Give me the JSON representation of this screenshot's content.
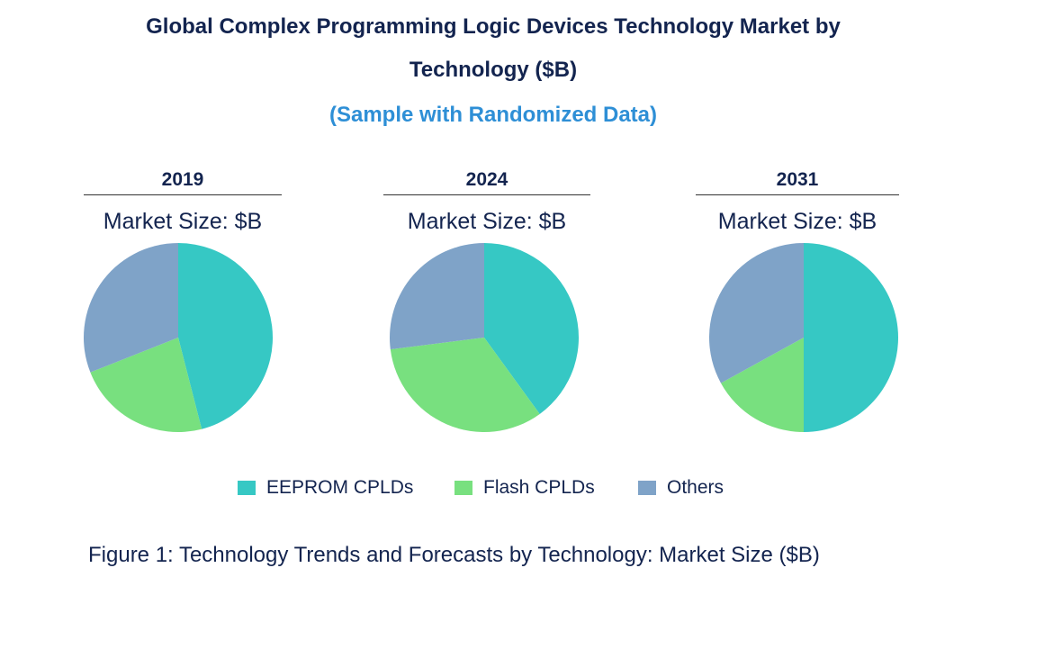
{
  "chart_data": {
    "type": "pie",
    "title": "Global Complex Programming Logic Devices Technology Market by Technology ($B)",
    "title_line1": "Global Complex Programming Logic Devices Technology Market by",
    "title_line2": "Technology ($B)",
    "subtitle": "(Sample with Randomized Data)",
    "categories": [
      "EEPROM CPLDs",
      "Flash CPLDs",
      "Others"
    ],
    "colors": [
      "#36c8c4",
      "#78e07f",
      "#7fa3c8"
    ],
    "legend_position": "bottom",
    "pies": [
      {
        "year": "2019",
        "label": "Market Size: $B",
        "values": [
          46,
          23,
          31
        ]
      },
      {
        "year": "2024",
        "label": "Market Size: $B",
        "values": [
          40,
          33,
          27
        ]
      },
      {
        "year": "2031",
        "label": "Market Size: $B",
        "values": [
          50,
          17,
          33
        ]
      }
    ],
    "caption": "Figure 1: Technology Trends and Forecasts by Technology: Market Size ($B)"
  }
}
